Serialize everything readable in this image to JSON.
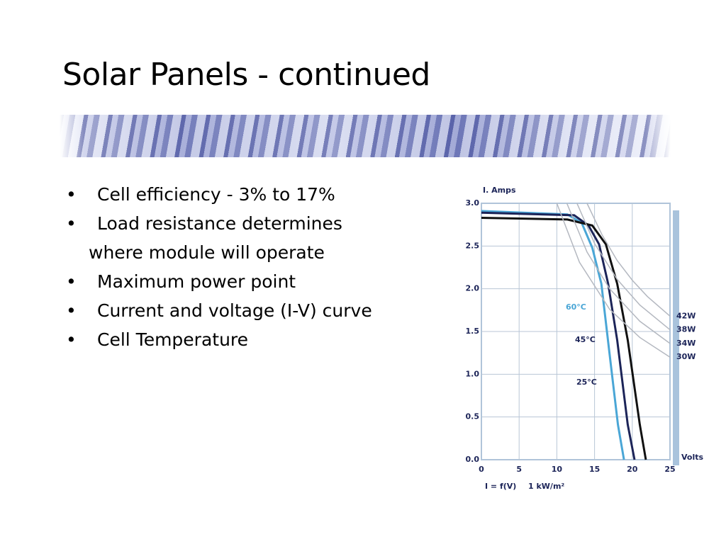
{
  "slide": {
    "title": "Solar Panels - continued",
    "bullets": [
      "Cell efficiency - 3% to 17%",
      "Load resistance determines where module will operate",
      "Maximum power point",
      "Current and voltage (I-V) curve",
      "Cell Temperature"
    ]
  },
  "chart_data": {
    "type": "line",
    "y_label": "I. Amps",
    "x_label": "Volts",
    "annotations": [
      "I = f(V)",
      "1 kW/m²"
    ],
    "xlim": [
      0,
      25
    ],
    "xticks": [
      0,
      5,
      10,
      15,
      20,
      25
    ],
    "ylim": [
      0,
      3
    ],
    "yticks": [
      {
        "value": 0,
        "label": "0.0"
      },
      {
        "value": 0.5,
        "label": "0.5"
      },
      {
        "value": 1,
        "label": "1.0"
      },
      {
        "value": 1.5,
        "label": "1.5"
      },
      {
        "value": 2,
        "label": "2.0"
      },
      {
        "value": 2.5,
        "label": "2.5"
      },
      {
        "value": 3,
        "label": "3.0"
      }
    ],
    "grid": true,
    "series": [
      {
        "name": "60°C",
        "color": "#4aa6d6",
        "x": [
          0,
          11.4,
          13.3,
          14.7,
          15.9,
          17,
          18.1,
          18.9
        ],
        "values": [
          2.91,
          2.87,
          2.77,
          2.48,
          2.06,
          1.23,
          0.41,
          0
        ]
      },
      {
        "name": "45°C",
        "color": "#1c2458",
        "x": [
          0,
          12.3,
          14.2,
          15.6,
          16.8,
          18,
          19.4,
          20.3
        ],
        "values": [
          2.89,
          2.86,
          2.74,
          2.52,
          2.06,
          1.4,
          0.41,
          0
        ]
      },
      {
        "name": "25°C",
        "color": "#111111",
        "x": [
          0,
          11.4,
          14.7,
          16.5,
          18,
          19.4,
          21,
          21.8
        ],
        "values": [
          2.83,
          2.81,
          2.74,
          2.52,
          2.06,
          1.4,
          0.41,
          0
        ]
      },
      {
        "name": "42W",
        "color": "#b4b8c0",
        "x": [
          14,
          16,
          18,
          20,
          22,
          25
        ],
        "values": [
          3,
          2.63,
          2.33,
          2.1,
          1.91,
          1.68
        ]
      },
      {
        "name": "38W",
        "color": "#b4b8c0",
        "x": [
          12.67,
          15,
          18,
          21,
          25
        ],
        "values": [
          3,
          2.53,
          2.11,
          1.81,
          1.52
        ]
      },
      {
        "name": "34W",
        "color": "#b4b8c0",
        "x": [
          11.33,
          14,
          17,
          21,
          25
        ],
        "values": [
          3,
          2.43,
          2,
          1.62,
          1.36
        ]
      },
      {
        "name": "30W",
        "color": "#b4b8c0",
        "x": [
          10,
          13,
          17,
          21,
          25
        ],
        "values": [
          3,
          2.31,
          1.76,
          1.43,
          1.2
        ]
      }
    ]
  }
}
